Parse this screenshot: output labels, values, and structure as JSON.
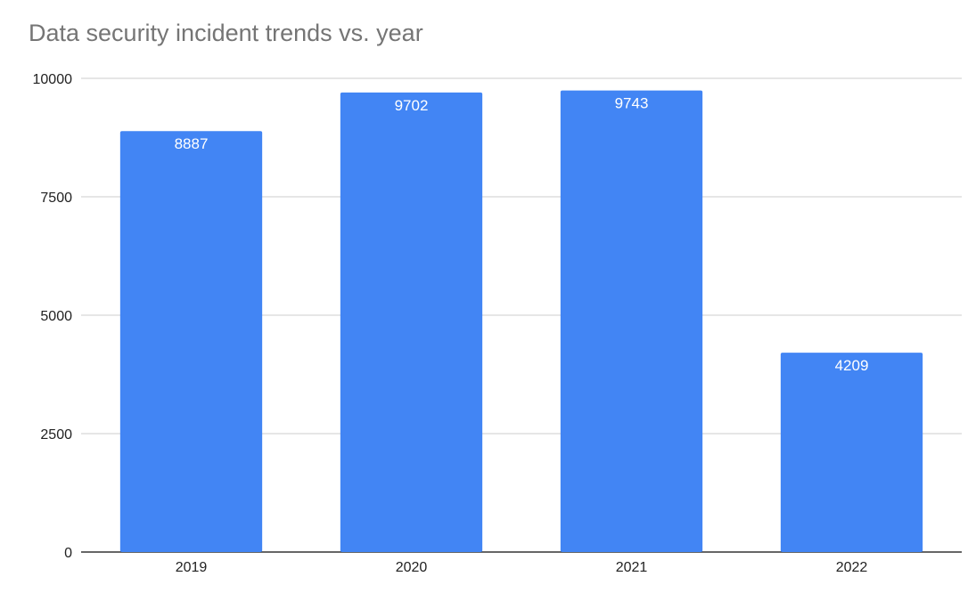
{
  "chart_data": {
    "type": "bar",
    "title": "Data security incident trends vs. year",
    "xlabel": "",
    "ylabel": "",
    "categories": [
      "2019",
      "2020",
      "2021",
      "2022"
    ],
    "values": [
      8887,
      9702,
      9743,
      4209
    ],
    "data_labels": [
      "8887",
      "9702",
      "9743",
      "4209"
    ],
    "ylim": [
      0,
      10000
    ],
    "yticks": [
      0,
      2500,
      5000,
      7500,
      10000
    ],
    "ytick_labels": [
      "0",
      "2500",
      "5000",
      "7500",
      "10000"
    ],
    "grid": true,
    "legend": "none",
    "bar_color": "#4285f4",
    "gridline_color": "#cccccc",
    "axis_color": "#333333"
  }
}
